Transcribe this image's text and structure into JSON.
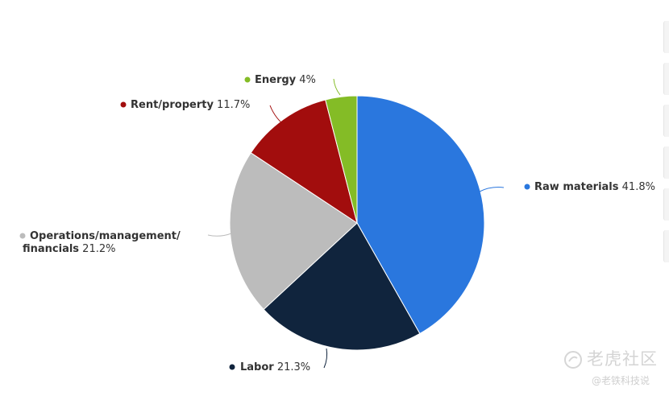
{
  "chart_data": {
    "type": "pie",
    "slices": [
      {
        "label": "Raw materials",
        "value": 41.8,
        "pct_text": "41.8%",
        "color": "#2a77de"
      },
      {
        "label": "Labor",
        "value": 21.3,
        "pct_text": "21.3%",
        "color": "#10243d"
      },
      {
        "label": "Operations/management/ financials",
        "label_lines": [
          "Operations/management/",
          "financials"
        ],
        "value": 21.2,
        "pct_text": "21.2%",
        "color": "#bcbcbc"
      },
      {
        "label": "Rent/property",
        "value": 11.7,
        "pct_text": "11.7%",
        "color": "#a20d0d"
      },
      {
        "label": "Energy",
        "value": 4,
        "pct_text": "4%",
        "color": "#84bc26"
      }
    ],
    "legend": "none"
  },
  "watermark": {
    "main": "老虎社区",
    "sub": "@老铁科技说"
  }
}
